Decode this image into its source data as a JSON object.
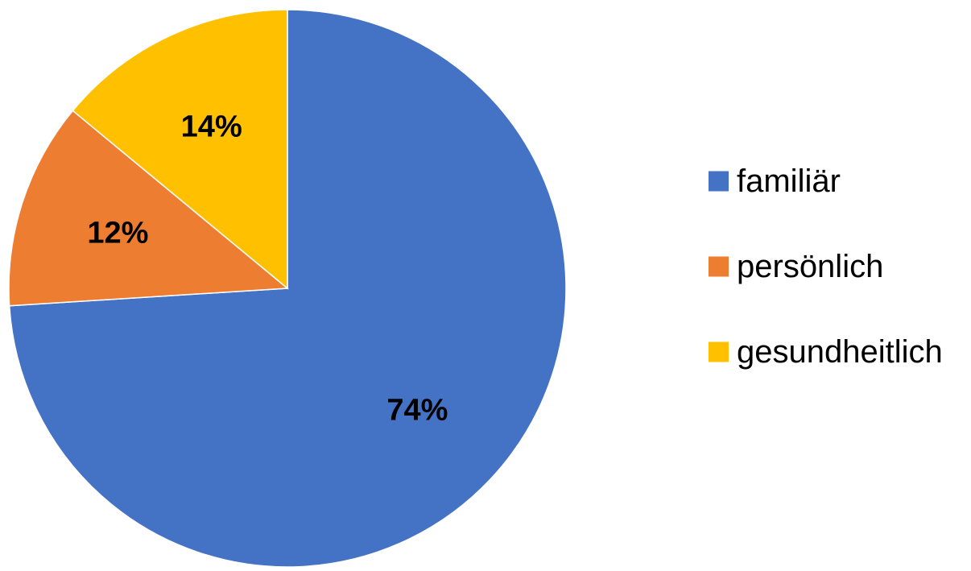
{
  "chart_data": {
    "type": "pie",
    "slices": [
      {
        "name": "familiär",
        "value": 74,
        "label": "74%",
        "color": "#4472C4"
      },
      {
        "name": "persönlich",
        "value": 12,
        "label": "12%",
        "color": "#ED7D31"
      },
      {
        "name": "gesundheitlich",
        "value": 14,
        "label": "14%",
        "color": "#FFC000"
      }
    ],
    "legend_position": "right",
    "start_angle_degrees": 0,
    "direction": "clockwise"
  }
}
